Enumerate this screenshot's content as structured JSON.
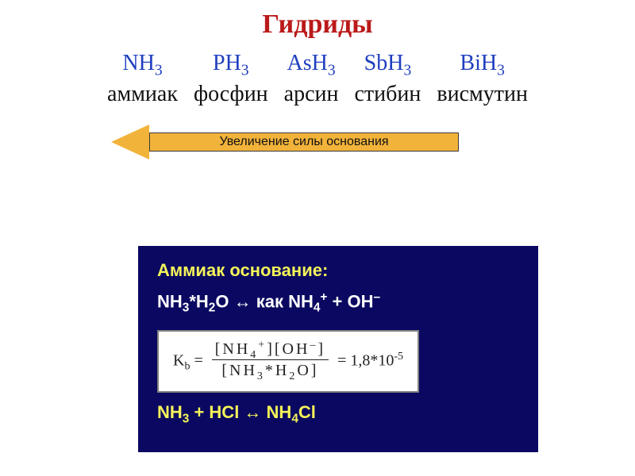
{
  "title": {
    "text": "Гидриды",
    "color": "#bb1a1a"
  },
  "hydrides": {
    "formula_color": "#1f3fbf",
    "name_color": "#111111",
    "items": [
      {
        "formula_base": "NH",
        "formula_sub": "3",
        "name": "аммиак"
      },
      {
        "formula_base": "PH",
        "formula_sub": "3",
        "name": "фосфин"
      },
      {
        "formula_base": "AsH",
        "formula_sub": "3",
        "name": "арсин"
      },
      {
        "formula_base": "SbH",
        "formula_sub": "3",
        "name": "стибин"
      },
      {
        "formula_base": "BiH",
        "formula_sub": "3",
        "name": "висмутин"
      }
    ]
  },
  "arrow": {
    "label": "Увеличение силы основания",
    "fill_color": "#f2b33a",
    "text_color": "#111111"
  },
  "panel": {
    "bg_color": "#0a0860",
    "heading": {
      "text": "Аммиак основание:",
      "color": "#f4f45a"
    },
    "line1_left": "NH",
    "line1_sub1": "3",
    "line1_mid": "*H",
    "line1_sub2": "2",
    "line1_o": "O ",
    "line1_arrow": "↔",
    "line1_kak": " как NH",
    "line1_sub3": "4",
    "line1_sup1": "+",
    "line1_plus": " + OH",
    "line1_sup2": "–",
    "line1_color": "#ffffff",
    "kb_label": "K",
    "kb_sub": "b",
    "kb_eq": " = ",
    "num_l": "[NH",
    "num_sub1": "4",
    "num_sup1": "+",
    "num_m": "][OH",
    "num_sup2": "–",
    "num_r": "]",
    "den_l": "[NH",
    "den_sub1": "3",
    "den_m": "*H",
    "den_sub2": "2",
    "den_r": "O]",
    "kb_val": " = 1,8*10",
    "kb_exp": "-5",
    "line3_l": "NH",
    "line3_sub1": "3",
    "line3_m": " + HCl ",
    "line3_arrow": "↔",
    "line3_r": " NH",
    "line3_sub2": "4",
    "line3_end": "Cl",
    "line3_color": "#f4f45a"
  }
}
